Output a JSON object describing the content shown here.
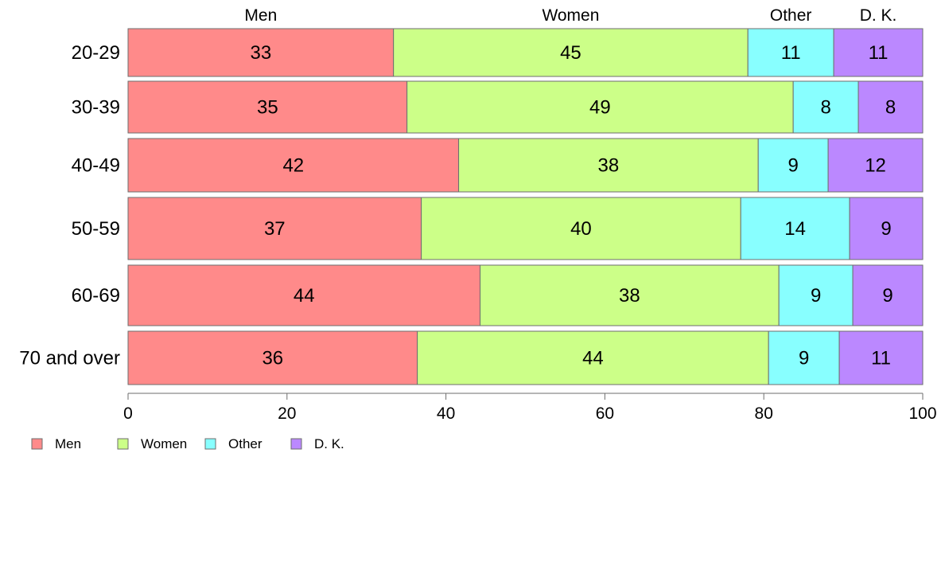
{
  "chart_data": {
    "type": "bar",
    "orientation": "horizontal",
    "stacked": true,
    "categories": [
      "20-29",
      "30-39",
      "40-49",
      "50-59",
      "60-69",
      "70 and over"
    ],
    "series": [
      {
        "name": "Men",
        "color": "#FF8A8A",
        "values": [
          33.4,
          35.1,
          41.6,
          36.9,
          44.3,
          36.4
        ],
        "labels": [
          "33",
          "35",
          "42",
          "37",
          "44",
          "36"
        ]
      },
      {
        "name": "Women",
        "color": "#CCFF88",
        "values": [
          44.6,
          48.6,
          37.7,
          40.2,
          37.6,
          44.2
        ],
        "labels": [
          "45",
          "49",
          "38",
          "40",
          "38",
          "44"
        ]
      },
      {
        "name": "Other",
        "color": "#88FFFF",
        "values": [
          10.8,
          8.2,
          8.8,
          13.7,
          9.3,
          8.9
        ],
        "labels": [
          "11",
          "8",
          "9",
          "14",
          "9",
          "9"
        ]
      },
      {
        "name": "D. K.",
        "color": "#BB88FF",
        "values": [
          11.2,
          8.1,
          11.9,
          9.2,
          8.8,
          10.5
        ],
        "labels": [
          "11",
          "8",
          "12",
          "9",
          "9",
          "11"
        ]
      }
    ],
    "top_labels": [
      "Men",
      "Women",
      "Other",
      "D. K."
    ],
    "xlim": [
      0,
      100
    ],
    "xticks": [
      "0",
      "20",
      "40",
      "60",
      "80",
      "100"
    ],
    "grid": false,
    "legend_position": "bottom-left"
  }
}
